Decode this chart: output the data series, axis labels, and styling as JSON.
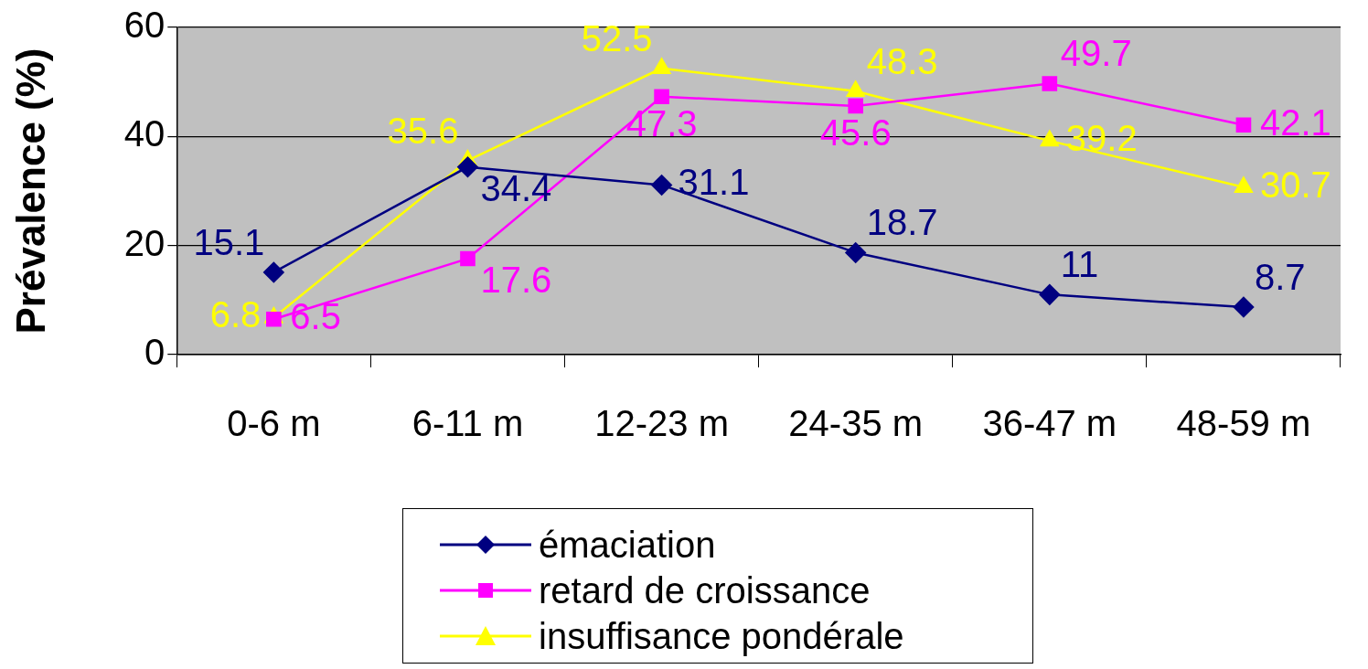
{
  "chart_data": {
    "type": "line",
    "categories": [
      "0-6 m",
      "6-11 m",
      "12-23 m",
      "24-35 m",
      "36-47 m",
      "48-59 m"
    ],
    "ylabel": "Prévalence (%)",
    "ylim": [
      0,
      60
    ],
    "yticks": [
      0,
      20,
      40,
      60
    ],
    "grid": "y",
    "legend": "bottom",
    "data_labels": true,
    "series": [
      {
        "name": "émaciation",
        "color": "#000080",
        "marker": "diamond",
        "values": [
          15.1,
          34.4,
          31.1,
          18.7,
          11,
          8.7
        ]
      },
      {
        "name": "retard de croissance",
        "color": "#ff00ff",
        "marker": "square",
        "values": [
          6.5,
          17.6,
          47.3,
          45.6,
          49.7,
          42.1
        ]
      },
      {
        "name": "insuffisance pondérale",
        "color": "#ffff00",
        "marker": "triangle",
        "values": [
          6.8,
          35.6,
          52.5,
          48.3,
          39.2,
          30.7
        ]
      }
    ]
  }
}
